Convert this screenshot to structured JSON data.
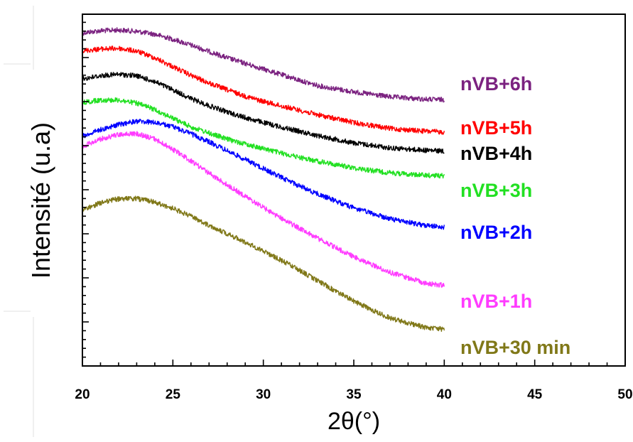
{
  "chart_data": {
    "type": "line",
    "title": "",
    "xlabel": "2θ(°)",
    "ylabel": "Intensité (u.a)",
    "xlim": [
      20,
      50
    ],
    "xticks": [
      20,
      25,
      30,
      35,
      40,
      45,
      50
    ],
    "y_units": "arbitrary (curves vertically offset, axis numbers not shown)",
    "legend_placement": "labels at right end of each curve",
    "grid": false,
    "series": [
      {
        "name": "nVB+6h",
        "color": "#7B2280",
        "points": [
          [
            20,
            0.947
          ],
          [
            21,
            0.953
          ],
          [
            22,
            0.955
          ],
          [
            23,
            0.951
          ],
          [
            24,
            0.943
          ],
          [
            25,
            0.929
          ],
          [
            26,
            0.912
          ],
          [
            27,
            0.894
          ],
          [
            28,
            0.876
          ],
          [
            29,
            0.86
          ],
          [
            30,
            0.844
          ],
          [
            31,
            0.828
          ],
          [
            32,
            0.812
          ],
          [
            33,
            0.797
          ],
          [
            35,
            0.779
          ],
          [
            37,
            0.765
          ],
          [
            39,
            0.758
          ],
          [
            40,
            0.757
          ]
        ]
      },
      {
        "name": "nVB+5h",
        "color": "#FF0000",
        "points": [
          [
            20,
            0.896
          ],
          [
            21,
            0.901
          ],
          [
            22,
            0.903
          ],
          [
            23,
            0.895
          ],
          [
            24,
            0.876
          ],
          [
            25,
            0.851
          ],
          [
            26,
            0.826
          ],
          [
            27,
            0.804
          ],
          [
            28,
            0.785
          ],
          [
            29,
            0.767
          ],
          [
            30,
            0.752
          ],
          [
            31,
            0.739
          ],
          [
            32,
            0.727
          ],
          [
            33,
            0.714
          ],
          [
            35,
            0.692
          ],
          [
            37,
            0.675
          ],
          [
            39,
            0.667
          ],
          [
            40,
            0.665
          ]
        ]
      },
      {
        "name": "nVB+4h",
        "color": "#000000",
        "points": [
          [
            20,
            0.816
          ],
          [
            21,
            0.825
          ],
          [
            22,
            0.829
          ],
          [
            23,
            0.825
          ],
          [
            24,
            0.808
          ],
          [
            25,
            0.785
          ],
          [
            26,
            0.76
          ],
          [
            27,
            0.74
          ],
          [
            28,
            0.722
          ],
          [
            29,
            0.706
          ],
          [
            30,
            0.692
          ],
          [
            31,
            0.679
          ],
          [
            32,
            0.667
          ],
          [
            33,
            0.655
          ],
          [
            35,
            0.634
          ],
          [
            37,
            0.62
          ],
          [
            39,
            0.613
          ],
          [
            40,
            0.611
          ]
        ]
      },
      {
        "name": "nVB+3h",
        "color": "#22E022",
        "points": [
          [
            20,
            0.749
          ],
          [
            21,
            0.756
          ],
          [
            22,
            0.756
          ],
          [
            23,
            0.747
          ],
          [
            24,
            0.729
          ],
          [
            25,
            0.704
          ],
          [
            26,
            0.68
          ],
          [
            27,
            0.662
          ],
          [
            28,
            0.645
          ],
          [
            29,
            0.631
          ],
          [
            30,
            0.618
          ],
          [
            31,
            0.605
          ],
          [
            32,
            0.593
          ],
          [
            33,
            0.582
          ],
          [
            35,
            0.563
          ],
          [
            37,
            0.549
          ],
          [
            39,
            0.542
          ],
          [
            40,
            0.541
          ]
        ]
      },
      {
        "name": "nVB+2h",
        "color": "#0000FF",
        "points": [
          [
            20,
            0.653
          ],
          [
            21,
            0.672
          ],
          [
            22,
            0.686
          ],
          [
            23,
            0.696
          ],
          [
            24,
            0.692
          ],
          [
            25,
            0.68
          ],
          [
            26,
            0.66
          ],
          [
            27,
            0.637
          ],
          [
            28,
            0.612
          ],
          [
            29,
            0.587
          ],
          [
            30,
            0.561
          ],
          [
            31,
            0.536
          ],
          [
            32,
            0.512
          ],
          [
            33,
            0.489
          ],
          [
            35,
            0.449
          ],
          [
            37,
            0.418
          ],
          [
            39,
            0.399
          ],
          [
            40,
            0.395
          ]
        ]
      },
      {
        "name": "nVB+1h",
        "color": "#FF3CFF",
        "points": [
          [
            20,
            0.624
          ],
          [
            21,
            0.645
          ],
          [
            22,
            0.658
          ],
          [
            23,
            0.66
          ],
          [
            24,
            0.645
          ],
          [
            25,
            0.616
          ],
          [
            26,
            0.583
          ],
          [
            27,
            0.548
          ],
          [
            28,
            0.515
          ],
          [
            29,
            0.482
          ],
          [
            30,
            0.45
          ],
          [
            31,
            0.42
          ],
          [
            32,
            0.391
          ],
          [
            33,
            0.363
          ],
          [
            35,
            0.31
          ],
          [
            37,
            0.266
          ],
          [
            39,
            0.235
          ],
          [
            40,
            0.229
          ]
        ]
      },
      {
        "name": "nVB+30 min",
        "color": "#807818",
        "points": [
          [
            20,
            0.443
          ],
          [
            21,
            0.464
          ],
          [
            22,
            0.475
          ],
          [
            23,
            0.476
          ],
          [
            24,
            0.466
          ],
          [
            25,
            0.448
          ],
          [
            26,
            0.425
          ],
          [
            27,
            0.4
          ],
          [
            28,
            0.376
          ],
          [
            29,
            0.352
          ],
          [
            30,
            0.327
          ],
          [
            31,
            0.3
          ],
          [
            32,
            0.272
          ],
          [
            33,
            0.242
          ],
          [
            35,
            0.184
          ],
          [
            37,
            0.136
          ],
          [
            39,
            0.109
          ],
          [
            40,
            0.104
          ]
        ]
      }
    ]
  }
}
